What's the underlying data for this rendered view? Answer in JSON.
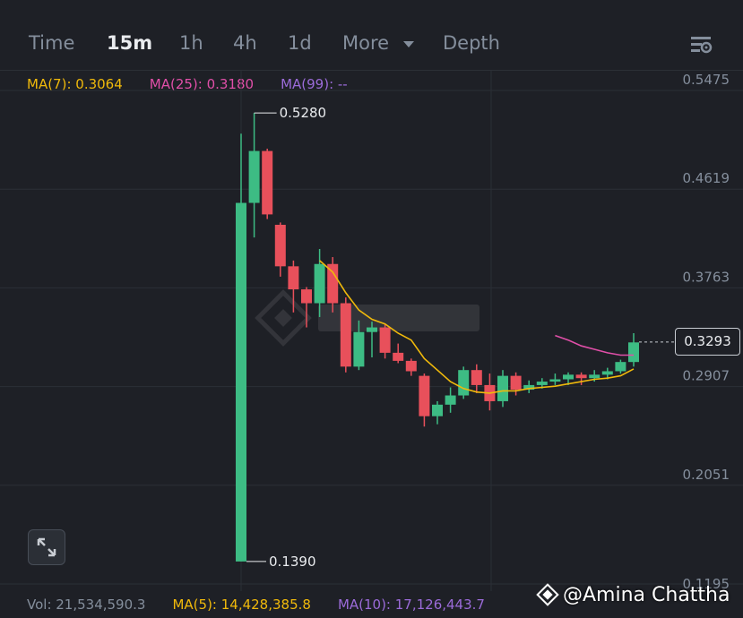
{
  "tabs": {
    "time": "Time",
    "m15": "15m",
    "h1": "1h",
    "h4": "4h",
    "d1": "1d",
    "more": "More",
    "depth": "Depth"
  },
  "ma_legend": {
    "ma7": "MA(7): 0.3064",
    "ma25": "MA(25): 0.3180",
    "ma99": "MA(99): --"
  },
  "volume": {
    "vol": "Vol: 21,534,590.3",
    "ma5": "MA(5): 14,428,385.8",
    "ma10": "MA(10): 17,126,443.7"
  },
  "current_price": "0.3293",
  "watermark": "@Amina Chattha",
  "chart_data": {
    "type": "candlestick",
    "y_ticks": [
      "0.5475",
      "0.4619",
      "0.3763",
      "0.2907",
      "0.2051",
      "0.1195"
    ],
    "ylim": [
      0.1195,
      0.5475
    ],
    "high_label": "0.5280",
    "low_label": "0.1390",
    "high_value": 0.528,
    "low_value": 0.139,
    "last_price": 0.3293,
    "colors": {
      "up": "#3dbc84",
      "down": "#e8505b",
      "ma7": "#f0b90b",
      "ma25": "#e04fa8"
    },
    "candles": [
      {
        "o": 0.139,
        "h": 0.51,
        "l": 0.139,
        "c": 0.45
      },
      {
        "o": 0.45,
        "h": 0.528,
        "l": 0.42,
        "c": 0.495
      },
      {
        "o": 0.495,
        "h": 0.497,
        "l": 0.436,
        "c": 0.44
      },
      {
        "o": 0.431,
        "h": 0.433,
        "l": 0.386,
        "c": 0.395
      },
      {
        "o": 0.395,
        "h": 0.4,
        "l": 0.355,
        "c": 0.375
      },
      {
        "o": 0.375,
        "h": 0.377,
        "l": 0.342,
        "c": 0.363
      },
      {
        "o": 0.363,
        "h": 0.41,
        "l": 0.351,
        "c": 0.397
      },
      {
        "o": 0.397,
        "h": 0.403,
        "l": 0.355,
        "c": 0.363
      },
      {
        "o": 0.363,
        "h": 0.368,
        "l": 0.303,
        "c": 0.308
      },
      {
        "o": 0.308,
        "h": 0.348,
        "l": 0.305,
        "c": 0.338
      },
      {
        "o": 0.338,
        "h": 0.347,
        "l": 0.316,
        "c": 0.342
      },
      {
        "o": 0.342,
        "h": 0.345,
        "l": 0.315,
        "c": 0.32
      },
      {
        "o": 0.32,
        "h": 0.328,
        "l": 0.311,
        "c": 0.313
      },
      {
        "o": 0.313,
        "h": 0.315,
        "l": 0.3,
        "c": 0.304
      },
      {
        "o": 0.3,
        "h": 0.302,
        "l": 0.256,
        "c": 0.265
      },
      {
        "o": 0.265,
        "h": 0.278,
        "l": 0.258,
        "c": 0.275
      },
      {
        "o": 0.275,
        "h": 0.29,
        "l": 0.268,
        "c": 0.283
      },
      {
        "o": 0.283,
        "h": 0.308,
        "l": 0.28,
        "c": 0.305
      },
      {
        "o": 0.305,
        "h": 0.31,
        "l": 0.285,
        "c": 0.292
      },
      {
        "o": 0.292,
        "h": 0.302,
        "l": 0.27,
        "c": 0.278
      },
      {
        "o": 0.278,
        "h": 0.305,
        "l": 0.273,
        "c": 0.3
      },
      {
        "o": 0.3,
        "h": 0.303,
        "l": 0.283,
        "c": 0.288
      },
      {
        "o": 0.288,
        "h": 0.296,
        "l": 0.285,
        "c": 0.292
      },
      {
        "o": 0.292,
        "h": 0.298,
        "l": 0.289,
        "c": 0.295
      },
      {
        "o": 0.295,
        "h": 0.302,
        "l": 0.292,
        "c": 0.297
      },
      {
        "o": 0.297,
        "h": 0.303,
        "l": 0.292,
        "c": 0.301
      },
      {
        "o": 0.301,
        "h": 0.303,
        "l": 0.292,
        "c": 0.298
      },
      {
        "o": 0.298,
        "h": 0.305,
        "l": 0.295,
        "c": 0.301
      },
      {
        "o": 0.301,
        "h": 0.307,
        "l": 0.297,
        "c": 0.304
      },
      {
        "o": 0.304,
        "h": 0.314,
        "l": 0.302,
        "c": 0.312
      },
      {
        "o": 0.312,
        "h": 0.337,
        "l": 0.308,
        "c": 0.329
      }
    ],
    "ma7_values": [
      null,
      null,
      null,
      null,
      null,
      null,
      0.4,
      0.39,
      0.372,
      0.357,
      0.349,
      0.345,
      0.337,
      0.331,
      0.315,
      0.305,
      0.295,
      0.289,
      0.286,
      0.285,
      0.287,
      0.287,
      0.289,
      0.29,
      0.291,
      0.293,
      0.295,
      0.297,
      0.298,
      0.3,
      0.306
    ],
    "ma25_values": [
      null,
      null,
      null,
      null,
      null,
      null,
      null,
      null,
      null,
      null,
      null,
      null,
      null,
      null,
      null,
      null,
      null,
      null,
      null,
      null,
      null,
      null,
      null,
      null,
      0.335,
      0.331,
      0.326,
      0.323,
      0.32,
      0.318,
      0.318
    ]
  }
}
